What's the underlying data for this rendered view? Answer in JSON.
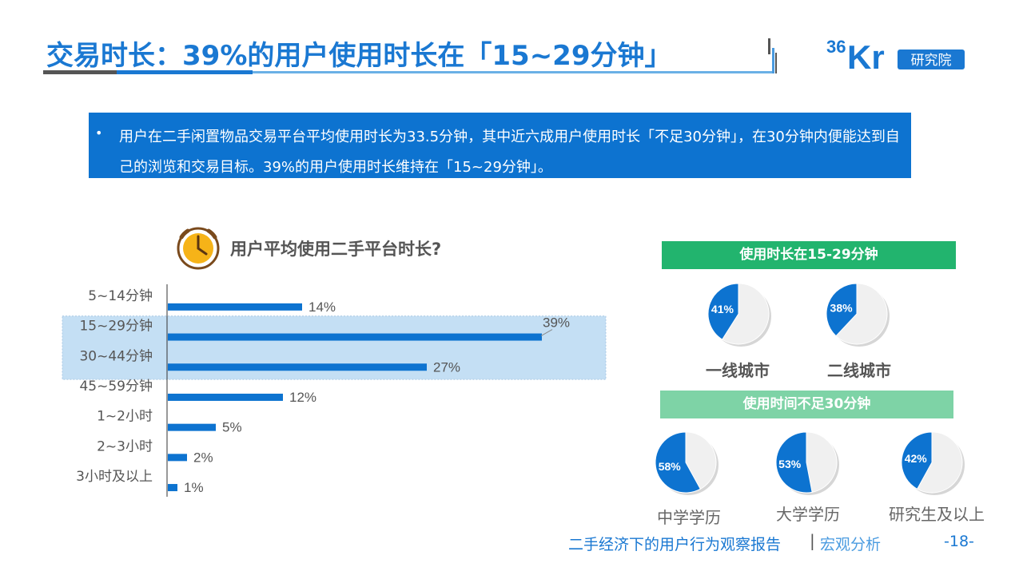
{
  "header": {
    "title": "交易时长：39%的用户使用时长在「15~29分钟」",
    "logo_number": "36",
    "logo_letters": "Kr",
    "logo_tag": "研究院"
  },
  "summary": {
    "bullet": "•",
    "text": "用户在二手闲置物品交易平台平均使用时长为33.5分钟，其中近六成用户使用时长「不足30分钟」，在30分钟内便能达到自己的浏览和交易目标。39%的用户使用时长维持在「15~29分钟」。"
  },
  "chart_data": [
    {
      "type": "bar",
      "orientation": "horizontal",
      "title": "用户平均使用二手平台时长?",
      "categories": [
        "5~14分钟",
        "15~29分钟",
        "30~44分钟",
        "45~59分钟",
        "1~2小时",
        "2~3小时",
        "3小时及以上"
      ],
      "values": [
        14,
        39,
        27,
        12,
        5,
        2,
        1
      ],
      "value_labels": [
        "14%",
        "39%",
        "27%",
        "12%",
        "5%",
        "2%",
        "1%"
      ],
      "highlighted_categories": [
        "15~29分钟",
        "30~44分钟"
      ],
      "bar_color": "#0d73d0",
      "highlight_color": "#c4dff4",
      "xlim": [
        0,
        45
      ]
    },
    {
      "type": "pie",
      "group": "使用时长在15-29分钟",
      "slices": [
        {
          "label": "一线城市",
          "value": 41,
          "display": "41%"
        },
        {
          "label": "二线城市",
          "value": 38,
          "display": "38%"
        }
      ]
    },
    {
      "type": "pie",
      "group": "使用时间不足30分钟",
      "slices": [
        {
          "label": "中学学历",
          "value": 58,
          "display": "58%"
        },
        {
          "label": "大学学历",
          "value": 53,
          "display": "53%"
        },
        {
          "label": "研究生及以上",
          "value": 42,
          "display": "42%"
        }
      ]
    }
  ],
  "panels": {
    "banner1": "使用时长在15-29分钟",
    "banner2": "使用时间不足30分钟"
  },
  "colors": {
    "brand_blue": "#1a78d2",
    "pie_fill": "#0d73d0",
    "pie_rest": "#f0f0f0",
    "banner1": "#22b46e",
    "banner2": "#7ed3a6"
  },
  "footer": {
    "report": "二手经济下的用户行为观察报告",
    "separator": "|",
    "section": "宏观分析",
    "page": "-18-"
  }
}
